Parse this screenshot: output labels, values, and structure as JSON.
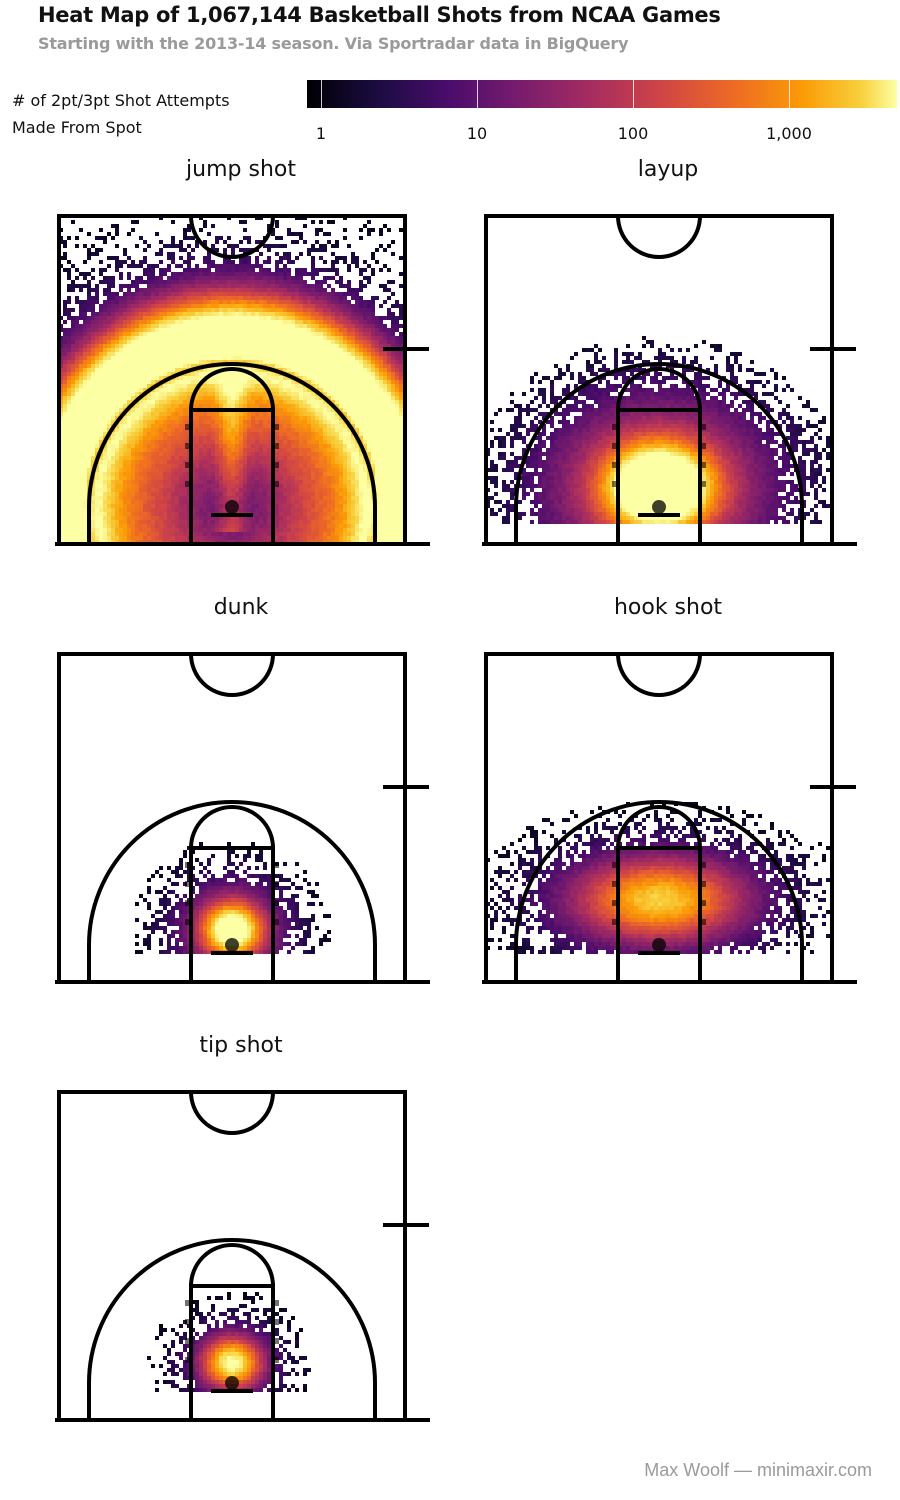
{
  "title": "Heat Map of 1,067,144 Basketball Shots from NCAA Games",
  "subtitle": "Starting with the 2013-14 season. Via Sportradar data in BigQuery",
  "legend": {
    "title_line1": "# of 2pt/3pt Shot Attempts",
    "title_line2": "Made From Spot",
    "ticks": [
      "1",
      "10",
      "100",
      "1,000"
    ],
    "scale": "log10",
    "palette": "inferno",
    "colors": [
      "#000004",
      "#1b0c41",
      "#4a0c6b",
      "#781c6d",
      "#a52c60",
      "#cf4446",
      "#ed6925",
      "#fb9b06",
      "#f7d13d",
      "#fcffa4"
    ]
  },
  "chart_data": [
    {
      "type": "heatmap",
      "title": "jump shot",
      "scale": "log",
      "shape": "arc-band"
    },
    {
      "type": "heatmap",
      "title": "layup",
      "scale": "log",
      "shape": "near-basket"
    },
    {
      "type": "heatmap",
      "title": "dunk",
      "scale": "log",
      "shape": "at-rim"
    },
    {
      "type": "heatmap",
      "title": "hook shot",
      "scale": "log",
      "shape": "paint-wide"
    },
    {
      "type": "heatmap",
      "title": "tip shot",
      "scale": "log",
      "shape": "at-rim-small"
    }
  ],
  "footer": "Max Woolf — minimaxir.com"
}
